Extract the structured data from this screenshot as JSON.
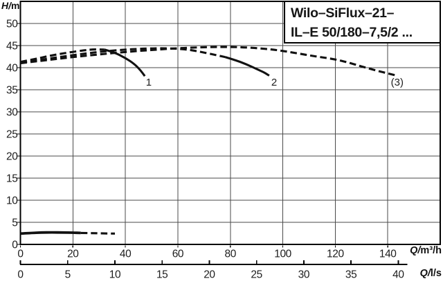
{
  "title_box": {
    "line1": "Wilo–SiFlux–21–",
    "line2": "IL–E 50/180–7,5/2 ..."
  },
  "axis_units": {
    "y": "H/m",
    "x_top": "Q/m³/h",
    "x_bottom": "Q/l/s"
  },
  "colors": {
    "frame": "#000000",
    "grid": "#4a4a4a",
    "curve": "#111111",
    "text": "#1d1d1d",
    "background": "#ffffff"
  },
  "chart_data": {
    "type": "line",
    "title": "Wilo–SiFlux–21– IL–E 50/180–7,5/2 ...",
    "grid": true,
    "y_axis": {
      "label": "H/m",
      "range": [
        0,
        55
      ],
      "ticks": [
        0,
        5,
        10,
        15,
        20,
        25,
        30,
        35,
        40,
        45,
        50
      ],
      "gridline_step": 5
    },
    "x_axis_m3h": {
      "label": "Q/m³/h",
      "range": [
        0,
        160
      ],
      "ticks": [
        0,
        20,
        40,
        60,
        80,
        100,
        120,
        140
      ],
      "gridline_step": 20
    },
    "x_axis_ls": {
      "label": "Q/l/s",
      "ticks": [
        0,
        5,
        10,
        15,
        20,
        25,
        30,
        35,
        40
      ],
      "m3h_per_ls": 3.6
    },
    "series": [
      {
        "name": "pump-curve-1",
        "label": "1",
        "label_at": [
          48.9,
          36.7
        ],
        "segments": [
          {
            "style": "dashed",
            "points": [
              [
                0,
                41.3
              ],
              [
                6,
                42.0
              ],
              [
                12,
                42.8
              ],
              [
                18,
                43.4
              ],
              [
                24,
                43.9
              ],
              [
                28,
                44.15
              ],
              [
                32,
                44.1
              ]
            ]
          },
          {
            "style": "solid",
            "points": [
              [
                32,
                44.1
              ],
              [
                36,
                43.4
              ],
              [
                40,
                42.2
              ],
              [
                43.5,
                40.8
              ],
              [
                45.8,
                39.4
              ],
              [
                47.4,
                38.1
              ]
            ]
          }
        ]
      },
      {
        "name": "pump-curve-2",
        "label": "2",
        "label_at": [
          96.7,
          36.7
        ],
        "segments": [
          {
            "style": "dashed",
            "points": [
              [
                0,
                41.15
              ],
              [
                8,
                41.8
              ],
              [
                16,
                42.5
              ],
              [
                24,
                43.15
              ],
              [
                32,
                43.7
              ],
              [
                40,
                44.1
              ],
              [
                48,
                44.35
              ],
              [
                55,
                44.4
              ],
              [
                61,
                44.25
              ],
              [
                66,
                43.9
              ],
              [
                71,
                43.3
              ],
              [
                75,
                42.8
              ],
              [
                78,
                42.4
              ]
            ]
          },
          {
            "style": "solid",
            "points": [
              [
                78,
                42.4
              ],
              [
                82,
                41.7
              ],
              [
                86,
                40.8
              ],
              [
                90,
                39.7
              ],
              [
                93,
                38.9
              ],
              [
                94.8,
                38.2
              ]
            ]
          }
        ]
      },
      {
        "name": "pump-curve-3",
        "label": "(3)",
        "label_at": [
          143.6,
          36.7
        ],
        "segments": [
          {
            "style": "dashed",
            "points": [
              [
                0,
                41.0
              ],
              [
                10,
                41.7
              ],
              [
                20,
                42.4
              ],
              [
                30,
                43.0
              ],
              [
                40,
                43.55
              ],
              [
                50,
                44.0
              ],
              [
                60,
                44.4
              ],
              [
                68,
                44.6
              ],
              [
                76,
                44.7
              ],
              [
                84,
                44.65
              ],
              [
                92,
                44.35
              ],
              [
                99,
                43.9
              ],
              [
                106,
                43.2
              ],
              [
                113,
                42.5
              ],
              [
                120,
                41.9
              ],
              [
                126,
                41.0
              ],
              [
                131,
                40.1
              ],
              [
                136,
                39.3
              ],
              [
                140,
                38.7
              ],
              [
                142.8,
                38.3
              ]
            ]
          }
        ]
      },
      {
        "name": "min-speed-curve",
        "label": "",
        "label_at": null,
        "segments": [
          {
            "style": "solid",
            "width": 3.8,
            "points": [
              [
                0,
                2.45
              ],
              [
                4,
                2.6
              ],
              [
                8,
                2.68
              ],
              [
                12,
                2.72
              ],
              [
                16,
                2.7
              ],
              [
                20,
                2.65
              ],
              [
                23,
                2.6
              ]
            ]
          },
          {
            "style": "dashed",
            "points": [
              [
                23,
                2.6
              ],
              [
                27,
                2.55
              ],
              [
                31,
                2.5
              ],
              [
                36,
                2.45
              ]
            ]
          }
        ]
      }
    ]
  }
}
